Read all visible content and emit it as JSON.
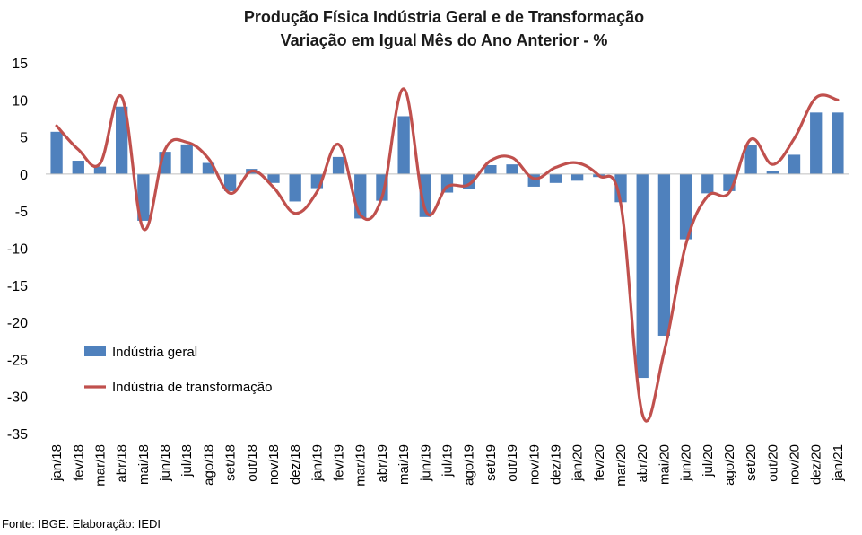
{
  "chart_data": {
    "type": "bar",
    "title": "Produção Física Indústria Geral e de Transformação",
    "subtitle": "Variação em Igual Mês do Ano Anterior - %",
    "categories": [
      "jan/18",
      "fev/18",
      "mar/18",
      "abr/18",
      "mai/18",
      "jun/18",
      "jul/18",
      "ago/18",
      "set/18",
      "out/18",
      "nov/18",
      "dez/18",
      "jan/19",
      "fev/19",
      "mar/19",
      "abr/19",
      "mai/19",
      "jun/19",
      "jul/19",
      "ago/19",
      "set/19",
      "out/19",
      "nov/19",
      "dez/19",
      "jan/20",
      "fev/20",
      "mar/20",
      "abr/20",
      "mai/20",
      "jun/20",
      "jul/20",
      "ago/20",
      "set/20",
      "out/20",
      "nov/20",
      "dez/20",
      "jan/21"
    ],
    "series": [
      {
        "name": "Indústria geral",
        "type": "bar",
        "color": "#4f81bd",
        "values": [
          5.7,
          1.8,
          1.0,
          9.1,
          -6.3,
          3.0,
          4.0,
          1.5,
          -2.3,
          0.7,
          -1.2,
          -3.7,
          -1.9,
          2.3,
          -6.0,
          -3.6,
          7.8,
          -5.8,
          -2.5,
          -2.0,
          1.2,
          1.3,
          -1.7,
          -1.2,
          -0.9,
          -0.4,
          -3.8,
          -27.5,
          -21.8,
          -8.8,
          -2.6,
          -2.3,
          3.9,
          0.4,
          2.6,
          8.3,
          8.3
        ]
      },
      {
        "name": "Indústria de transformação",
        "type": "line",
        "color": "#c0504d",
        "values": [
          6.5,
          3.3,
          1.4,
          10.4,
          -7.4,
          3.3,
          4.3,
          2.1,
          -2.6,
          0.4,
          -1.8,
          -5.3,
          -2.4,
          4.0,
          -5.5,
          -3.1,
          11.5,
          -4.9,
          -1.7,
          -1.4,
          1.8,
          2.2,
          -0.6,
          0.9,
          1.5,
          -0.2,
          -4.0,
          -32.4,
          -24.0,
          -9.5,
          -3.0,
          -2.5,
          4.7,
          1.3,
          4.8,
          10.3,
          10.0
        ]
      }
    ],
    "ylim": [
      -35,
      15
    ],
    "yticks": [
      15,
      10,
      5,
      0,
      -5,
      -10,
      -15,
      -20,
      -25,
      -30,
      -35
    ],
    "legend": "inside-bottom-left",
    "grid": false
  },
  "source": "Fonte: IBGE. Elaboração: IEDI"
}
